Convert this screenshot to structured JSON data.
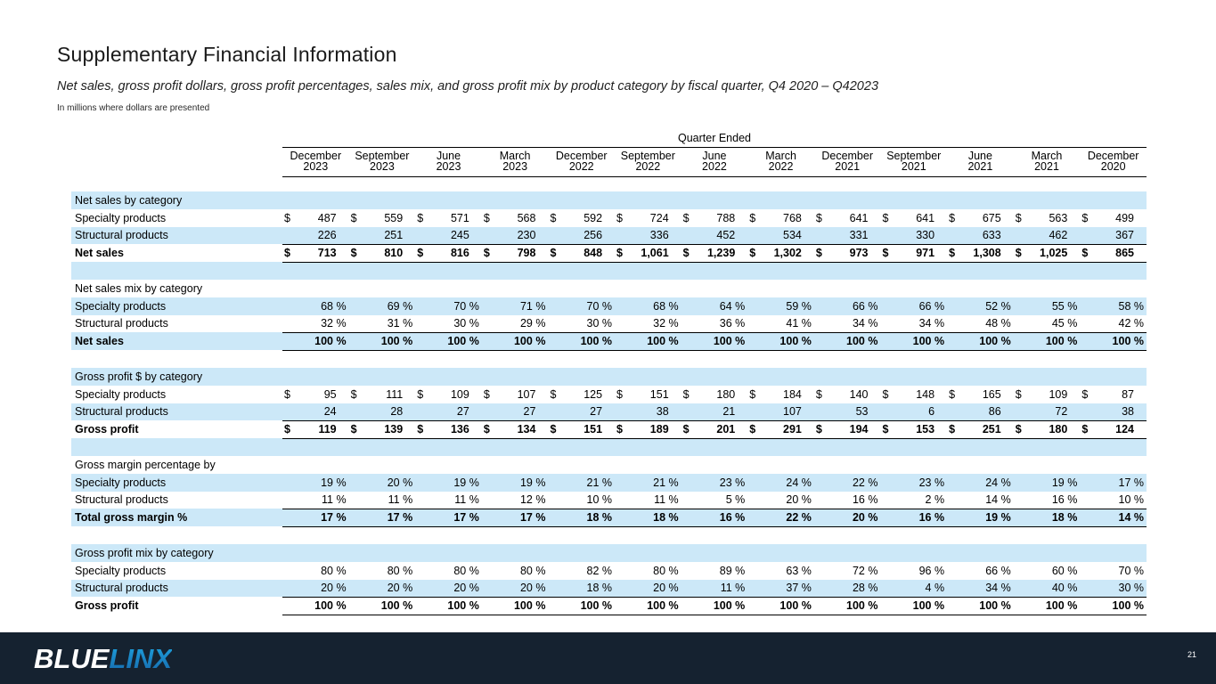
{
  "slide": {
    "title": "Supplementary Financial Information",
    "subtitle": "Net sales, gross profit dollars, gross profit percentages, sales mix, and gross profit mix by product category by fiscal quarter, Q4 2020 – Q42023",
    "note": "In millions where dollars are presented",
    "page_number": "21"
  },
  "logo": {
    "blue": "BLUE",
    "linx": "LINX"
  },
  "colors": {
    "row_highlight": "#cce8f8",
    "footer_bg": "#152230",
    "logo_blue": "#1d9bd8",
    "logo_blue_dark": "#1668ab"
  },
  "table": {
    "group_header": "Quarter Ended",
    "columns": [
      {
        "month": "December",
        "year": "2023"
      },
      {
        "month": "September",
        "year": "2023"
      },
      {
        "month": "June",
        "year": "2023"
      },
      {
        "month": "March",
        "year": "2023"
      },
      {
        "month": "December",
        "year": "2022"
      },
      {
        "month": "September",
        "year": "2022"
      },
      {
        "month": "June",
        "year": "2022"
      },
      {
        "month": "March",
        "year": "2022"
      },
      {
        "month": "December",
        "year": "2021"
      },
      {
        "month": "September",
        "year": "2021"
      },
      {
        "month": "June",
        "year": "2021"
      },
      {
        "month": "March",
        "year": "2021"
      },
      {
        "month": "December",
        "year": "2020"
      }
    ],
    "rows": [
      {
        "type": "section",
        "label": "Net sales by category"
      },
      {
        "type": "data",
        "label": "Specialty products",
        "format": "dollar",
        "values": [
          "487",
          "559",
          "571",
          "568",
          "592",
          "724",
          "788",
          "768",
          "641",
          "641",
          "675",
          "563",
          "499"
        ]
      },
      {
        "type": "data",
        "label": "Structural products",
        "format": "number",
        "rule": "bottom",
        "values": [
          "226",
          "251",
          "245",
          "230",
          "256",
          "336",
          "452",
          "534",
          "331",
          "330",
          "633",
          "462",
          "367"
        ]
      },
      {
        "type": "data",
        "label": "Net sales",
        "format": "dollar",
        "bold": true,
        "rule": "bottom",
        "values": [
          "713",
          "810",
          "816",
          "798",
          "848",
          "1,061",
          "1,239",
          "1,302",
          "973",
          "971",
          "1,308",
          "1,025",
          "865"
        ]
      },
      {
        "type": "blank"
      },
      {
        "type": "section",
        "label": "Net sales mix by category"
      },
      {
        "type": "data",
        "label": "Specialty products",
        "format": "percent",
        "values": [
          "68",
          "69",
          "70",
          "71",
          "70",
          "68",
          "64",
          "59",
          "66",
          "66",
          "52",
          "55",
          "58"
        ]
      },
      {
        "type": "data",
        "label": "Structural products",
        "format": "percent",
        "rule": "bottom",
        "values": [
          "32",
          "31",
          "30",
          "29",
          "30",
          "32",
          "36",
          "41",
          "34",
          "34",
          "48",
          "45",
          "42"
        ]
      },
      {
        "type": "data",
        "label": "Net sales",
        "format": "percent",
        "bold": true,
        "rule": "bottom",
        "values": [
          "100",
          "100",
          "100",
          "100",
          "100",
          "100",
          "100",
          "100",
          "100",
          "100",
          "100",
          "100",
          "100"
        ]
      },
      {
        "type": "blank"
      },
      {
        "type": "section",
        "label": "Gross profit $ by category"
      },
      {
        "type": "data",
        "label": "Specialty products",
        "format": "dollar",
        "values": [
          "95",
          "111",
          "109",
          "107",
          "125",
          "151",
          "180",
          "184",
          "140",
          "148",
          "165",
          "109",
          "87"
        ]
      },
      {
        "type": "data",
        "label": "Structural products",
        "format": "number",
        "rule": "bottom",
        "values": [
          "24",
          "28",
          "27",
          "27",
          "27",
          "38",
          "21",
          "107",
          "53",
          "6",
          "86",
          "72",
          "38"
        ]
      },
      {
        "type": "data",
        "label": "Gross profit",
        "format": "dollar",
        "bold": true,
        "rule": "bottom",
        "values": [
          "119",
          "139",
          "136",
          "134",
          "151",
          "189",
          "201",
          "291",
          "194",
          "153",
          "251",
          "180",
          "124"
        ]
      },
      {
        "type": "blank"
      },
      {
        "type": "section",
        "label": "Gross margin percentage by"
      },
      {
        "type": "data",
        "label": "Specialty products",
        "format": "percent",
        "values": [
          "19",
          "20",
          "19",
          "19",
          "21",
          "21",
          "23",
          "24",
          "22",
          "23",
          "24",
          "19",
          "17"
        ]
      },
      {
        "type": "data",
        "label": "Structural products",
        "format": "percent",
        "rule": "bottom",
        "values": [
          "11",
          "11",
          "11",
          "12",
          "10",
          "11",
          "5",
          "20",
          "16",
          "2",
          "14",
          "16",
          "10"
        ]
      },
      {
        "type": "data",
        "label": "Total gross margin %",
        "format": "percent",
        "bold": true,
        "rule": "bottom",
        "values": [
          "17",
          "17",
          "17",
          "17",
          "18",
          "18",
          "16",
          "22",
          "20",
          "16",
          "19",
          "18",
          "14"
        ]
      },
      {
        "type": "blank"
      },
      {
        "type": "section",
        "label": "Gross profit mix by category"
      },
      {
        "type": "data",
        "label": "Specialty products",
        "format": "percent",
        "values": [
          "80",
          "80",
          "80",
          "80",
          "82",
          "80",
          "89",
          "63",
          "72",
          "96",
          "66",
          "60",
          "70"
        ]
      },
      {
        "type": "data",
        "label": "Structural products",
        "format": "percent",
        "rule": "bottom",
        "values": [
          "20",
          "20",
          "20",
          "20",
          "18",
          "20",
          "11",
          "37",
          "28",
          "4",
          "34",
          "40",
          "30"
        ]
      },
      {
        "type": "data",
        "label": "Gross profit",
        "format": "percent",
        "bold": true,
        "rule": "bottom",
        "values": [
          "100",
          "100",
          "100",
          "100",
          "100",
          "100",
          "100",
          "100",
          "100",
          "100",
          "100",
          "100",
          "100"
        ]
      }
    ]
  }
}
